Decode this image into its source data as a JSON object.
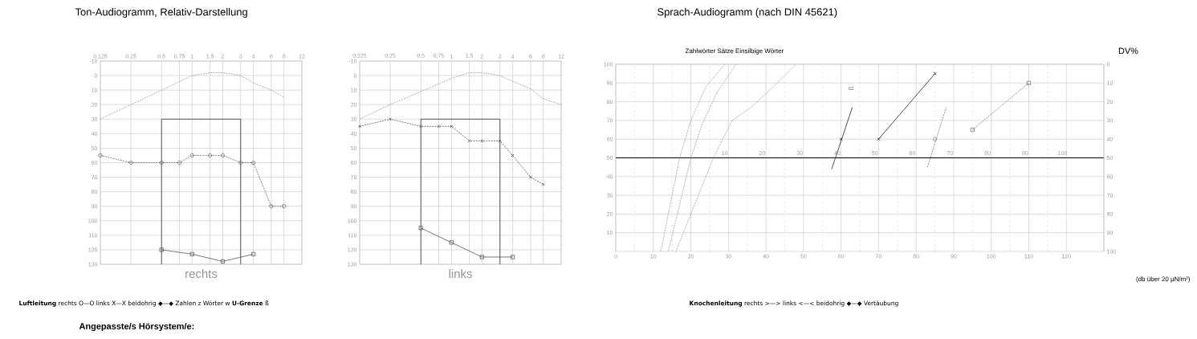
{
  "chart_data": [
    {
      "type": "line",
      "title": "Ton-Audiogramm, Relativ-Darstellung",
      "xlabel": "rechts",
      "log": "x",
      "grid": true,
      "xlim": [
        0.125,
        12
      ],
      "xticks": [
        0.125,
        0.25,
        0.5,
        0.75,
        1,
        1.5,
        2,
        3,
        4,
        6,
        8,
        12
      ],
      "ylim": [
        130,
        -10
      ],
      "yticks": [
        -10,
        0,
        10,
        20,
        30,
        40,
        50,
        60,
        70,
        80,
        90,
        100,
        110,
        120,
        130
      ],
      "series": [
        {
          "color": "#9a9a9a",
          "line_style": "dashed",
          "marker": "none",
          "x": [
            0.125,
            0.25,
            0.5,
            1,
            1.5,
            2,
            3,
            4,
            6,
            8
          ],
          "values": [
            30,
            20,
            10,
            0,
            -2,
            -2,
            0,
            5,
            10,
            15
          ]
        },
        {
          "color": "#333333",
          "line_style": "solid",
          "marker": "none",
          "x": [
            0.5,
            0.5,
            3,
            3
          ],
          "values": [
            130,
            30,
            30,
            130
          ]
        },
        {
          "color": "#666666",
          "line_style": "dashed",
          "marker": "circle",
          "x": [
            0.125,
            0.25,
            0.5,
            0.75,
            1,
            1.5,
            2,
            3,
            4,
            6,
            8
          ],
          "values": [
            55,
            60,
            60,
            60,
            55,
            55,
            55,
            60,
            60,
            90,
            90
          ]
        },
        {
          "color": "#555555",
          "line_style": "solid",
          "marker": "square",
          "x": [
            0.5,
            1,
            2,
            4
          ],
          "values": [
            120,
            123,
            128,
            123
          ]
        }
      ],
      "annotations": [
        "**Luftleitung**   rechts O—O   links X—X   beidohrig ◆—◆   Zahlen z   Wörter w   **U-Grenze** ß",
        "**Knochenleitung**   rechts >—>   links <—<   beidohrig ◆—◆   Vertäubung",
        "**Angepasste/s Hörsystem/e:**"
      ]
    },
    {
      "type": "line",
      "xlabel": "links",
      "log": "x",
      "grid": true,
      "xlim": [
        0.125,
        12
      ],
      "xticks": [
        {
          "value": 0.125,
          "label": "0,125"
        },
        {
          "value": 0.25,
          "label": "0,25"
        },
        {
          "value": 0.5,
          "label": "0,5"
        },
        {
          "value": 0.75,
          "label": "0,75"
        },
        1,
        {
          "value": 1.5,
          "label": "1,5"
        },
        2,
        3,
        4,
        6,
        8,
        12
      ],
      "ylim": [
        130,
        -10
      ],
      "yticks": [
        -10,
        0,
        10,
        20,
        30,
        40,
        50,
        60,
        70,
        80,
        90,
        100,
        110,
        120,
        130
      ],
      "series": [
        {
          "color": "#9a9a9a",
          "line_style": "dashed",
          "marker": "none",
          "x": [
            0.125,
            0.25,
            0.5,
            1,
            1.5,
            2,
            3,
            4,
            6,
            8,
            12
          ],
          "values": [
            30,
            20,
            11,
            2,
            -2,
            -2,
            0,
            4,
            9,
            16,
            20
          ]
        },
        {
          "color": "#333333",
          "line_style": "solid",
          "marker": "none",
          "x": [
            0.5,
            0.5,
            3,
            3
          ],
          "values": [
            130,
            30,
            30,
            130
          ]
        },
        {
          "color": "#555555",
          "line_style": "dashed",
          "marker": "cross",
          "x": [
            0.125,
            0.25,
            0.5,
            0.75,
            1,
            1.5,
            2,
            3,
            4,
            6,
            8
          ],
          "values": [
            35,
            30,
            35,
            35,
            35,
            45,
            45,
            45,
            55,
            70,
            75
          ]
        },
        {
          "color": "#555555",
          "line_style": "solid",
          "marker": "square",
          "x": [
            0.5,
            1,
            2,
            4
          ],
          "values": [
            105,
            115,
            125,
            125
          ]
        }
      ]
    },
    {
      "type": "line",
      "title": "Sprach-Audiogramm (nach DIN 45621)",
      "subtitle": "Zahlwörter Sätze Einsilbige Wörter",
      "xlabel": "(db über 20 µN/m²)",
      "y2label": "DV%",
      "grid": true,
      "xlim": [
        0,
        130
      ],
      "xticks": [
        0,
        10,
        20,
        30,
        40,
        50,
        60,
        70,
        80,
        90,
        100,
        110,
        120
      ],
      "x2lim": [
        -19,
        111
      ],
      "x2ticks": [
        10,
        20,
        30,
        40,
        50,
        60,
        70,
        80,
        90,
        100
      ],
      "ylim": [
        0,
        100
      ],
      "yticks": [
        10,
        20,
        30,
        40,
        50,
        60,
        70,
        80,
        90,
        100
      ],
      "y2lim": [
        100,
        0
      ],
      "y2ticks": [
        0,
        10,
        20,
        30,
        40,
        50,
        60,
        70,
        80,
        90,
        100
      ],
      "series": [
        {
          "color": "#9a9a9a",
          "line_style": "dashed",
          "marker": "none",
          "x": [
            12,
            15,
            17,
            20,
            24,
            29
          ],
          "values": [
            0,
            30,
            50,
            70,
            88,
            100
          ]
        },
        {
          "color": "#9a9a9a",
          "line_style": "dashed",
          "marker": "none",
          "x": [
            14,
            17,
            20,
            23,
            27,
            32
          ],
          "values": [
            0,
            25,
            50,
            68,
            85,
            100
          ]
        },
        {
          "color": "#9a9a9a",
          "line_style": "dashed",
          "marker": "none",
          "x": [
            16,
            21,
            26,
            31,
            36,
            42,
            48
          ],
          "values": [
            0,
            25,
            50,
            70,
            77,
            88,
            100
          ]
        },
        {
          "color": "#222222",
          "line_style": "solid",
          "marker": "none",
          "x": [
            57.5,
            63
          ],
          "values": [
            44,
            77
          ]
        },
        {
          "type": "scatter",
          "color": "#222222",
          "marker": "cross",
          "x": [
            60
          ],
          "values": [
            60
          ]
        },
        {
          "color": "#222222",
          "line_style": "solid",
          "marker": "cross",
          "x": [
            70,
            85
          ],
          "values": [
            60,
            95
          ]
        },
        {
          "color": "#777777",
          "line_style": "dashed",
          "marker": "none",
          "x": [
            83,
            88
          ],
          "values": [
            45,
            77
          ]
        },
        {
          "type": "scatter",
          "color": "#777777",
          "marker": "circle",
          "x": [
            85
          ],
          "values": [
            60
          ]
        },
        {
          "color": "#777777",
          "line_style": "dashed",
          "marker": "square",
          "x": [
            95,
            110
          ],
          "values": [
            65,
            90
          ]
        }
      ],
      "annotations": [
        "ß"
      ]
    }
  ]
}
